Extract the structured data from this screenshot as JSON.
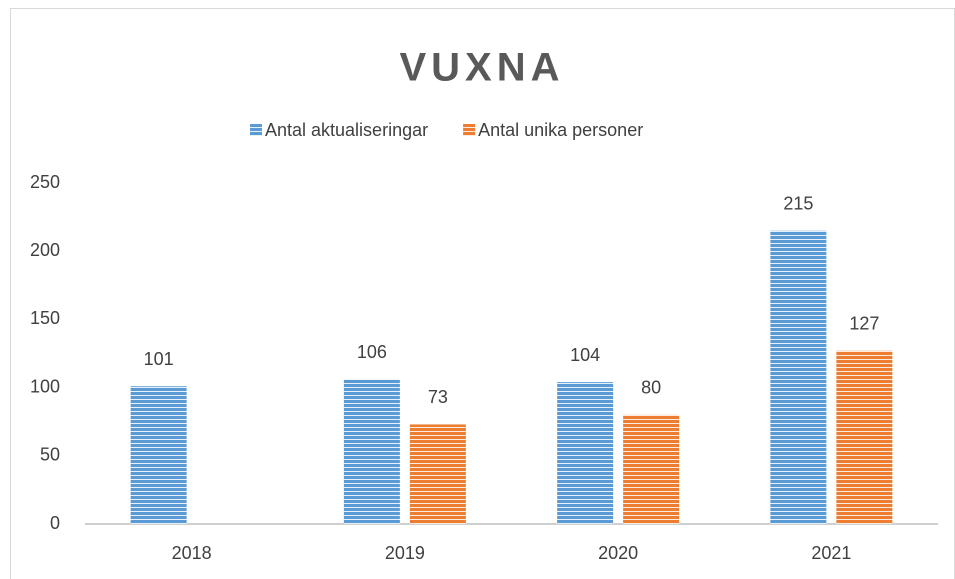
{
  "chart_data": {
    "type": "bar",
    "title": "VUXNA",
    "categories": [
      "2018",
      "2019",
      "2020",
      "2021"
    ],
    "series": [
      {
        "name": "Antal aktualiseringar",
        "color": "#5b9bd5",
        "values": [
          101,
          106,
          104,
          215
        ]
      },
      {
        "name": "Antal unika personer",
        "color": "#ed7d31",
        "values": [
          null,
          73,
          80,
          127
        ]
      }
    ],
    "ylim": [
      0,
      250
    ],
    "yticks": [
      0,
      50,
      100,
      150,
      200,
      250
    ],
    "grid": false,
    "legend": "top"
  }
}
